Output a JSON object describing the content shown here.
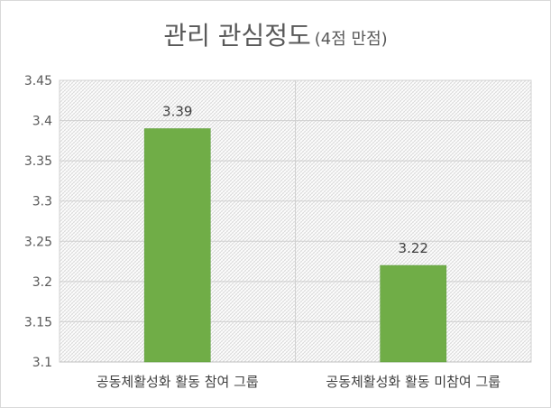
{
  "chart_data": {
    "type": "bar",
    "title": "관리 관심정도",
    "subtitle": "(4점 만점)",
    "categories": [
      "공동체활성화 활동 참여 그룹",
      "공동체활성화 활동 미참여 그룹"
    ],
    "values": [
      3.39,
      3.22
    ],
    "data_labels": [
      "3.39",
      "3.22"
    ],
    "ylim": [
      3.1,
      3.45
    ],
    "yticks": [
      "3.1",
      "3.15",
      "3.2",
      "3.25",
      "3.3",
      "3.35",
      "3.4",
      "3.45"
    ],
    "xlabel": "",
    "ylabel": "",
    "grid": true,
    "legend": "none",
    "colors": {
      "bar": "#70ad47",
      "bar_border": "#5b9b3a",
      "plot_pattern": "#d9d9d9",
      "axis": "#bfbfbf",
      "text": "#595959"
    }
  }
}
